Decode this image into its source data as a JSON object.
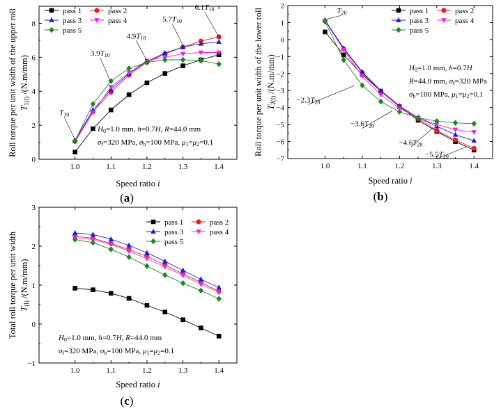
{
  "colors": {
    "pass 1": "#000000",
    "pass 2": "#e8211d",
    "pass 3": "#1c1cdb",
    "pass 4": "#e22ce2",
    "pass 5": "#1d8a1d"
  },
  "markers": {
    "pass 1": "square",
    "pass 2": "circle",
    "pass 3": "triangle-up",
    "pass 4": "triangle-down",
    "pass 5": "diamond"
  },
  "chart_data": [
    {
      "id": "a",
      "type": "line",
      "panel_label": [
        "(",
        "a",
        ")"
      ],
      "xlabel": [
        "Speed ratio ",
        "i"
      ],
      "ylabel_lines": [
        [
          [
            "Roll torque per unit width of the upper roll",
            "n"
          ]
        ],
        [
          [
            "T",
            "i"
          ],
          [
            "1(l)",
            "sub"
          ],
          [
            " /(N.m/mm)",
            "n"
          ]
        ]
      ],
      "xlim": [
        0.9,
        1.45
      ],
      "ylim": [
        0,
        9
      ],
      "xticks": [
        1.0,
        1.1,
        1.2,
        1.3,
        1.4
      ],
      "xtick_labels": [
        "1.0",
        "1.1",
        "1.2",
        "1.3",
        "1.4"
      ],
      "yticks": [
        0,
        2,
        4,
        6,
        8
      ],
      "ytick_labels": [
        "0",
        "2",
        "4",
        "6",
        "8"
      ],
      "grid": false,
      "legend_position": "top-left",
      "legend_columns": 2,
      "x": [
        1.0,
        1.05,
        1.1,
        1.15,
        1.2,
        1.25,
        1.3,
        1.35,
        1.4
      ],
      "series": [
        {
          "name": "pass 1",
          "values": [
            0.42,
            1.8,
            2.9,
            3.8,
            4.5,
            5.05,
            5.5,
            5.85,
            6.15
          ]
        },
        {
          "name": "pass 2",
          "values": [
            1.05,
            2.8,
            3.95,
            4.95,
            5.7,
            6.2,
            6.6,
            6.95,
            7.2
          ]
        },
        {
          "name": "pass 3",
          "values": [
            1.12,
            2.9,
            4.1,
            5.05,
            5.75,
            6.25,
            6.6,
            6.8,
            6.9
          ]
        },
        {
          "name": "pass 4",
          "values": [
            1.02,
            2.75,
            4.25,
            5.1,
            5.8,
            6.0,
            6.2,
            6.28,
            6.28
          ]
        },
        {
          "name": "pass 5",
          "values": [
            1.08,
            3.25,
            4.6,
            5.35,
            5.7,
            5.85,
            5.85,
            5.8,
            5.6
          ]
        }
      ],
      "annotations": [
        {
          "parts": [
            [
              "T",
              "i"
            ],
            [
              "10",
              "sub"
            ]
          ],
          "x": 0.97,
          "y": 2.6,
          "target": [
            1.0,
            1.15
          ]
        },
        {
          "parts": [
            [
              "3.9",
              "n"
            ],
            [
              "T",
              "i"
            ],
            [
              "10",
              "sub"
            ]
          ],
          "x": 1.07,
          "y": 6.1,
          "target": [
            1.1,
            4.5
          ]
        },
        {
          "parts": [
            [
              "4.9",
              "n"
            ],
            [
              "T",
              "i"
            ],
            [
              "10",
              "sub"
            ]
          ],
          "x": 1.17,
          "y": 7.1,
          "target": [
            1.2,
            5.8
          ]
        },
        {
          "parts": [
            [
              "5.7",
              "n"
            ],
            [
              "T",
              "i"
            ],
            [
              "10",
              "sub"
            ]
          ],
          "x": 1.27,
          "y": 8.1,
          "target": [
            1.3,
            6.7
          ]
        },
        {
          "parts": [
            [
              "6.1",
              "n"
            ],
            [
              "T",
              "i"
            ],
            [
              "10",
              "sub"
            ]
          ],
          "x": 1.36,
          "y": 8.8,
          "target": [
            1.4,
            7.2
          ]
        }
      ],
      "note_lines": [
        [
          [
            "H",
            "i"
          ],
          [
            "0",
            "sub"
          ],
          [
            "=1.0 mm, ",
            "n"
          ],
          [
            "h",
            "i"
          ],
          [
            "=0.7",
            "n"
          ],
          [
            "H",
            "i"
          ],
          [
            ", ",
            "n"
          ],
          [
            "R",
            "i"
          ],
          [
            "=44.0 mm",
            "n"
          ]
        ],
        [
          [
            "σ",
            "i"
          ],
          [
            "f",
            "sub"
          ],
          [
            "=320 MPa, ",
            "n"
          ],
          [
            "σ",
            "i"
          ],
          [
            "b",
            "sub"
          ],
          [
            "=100 MPa, ",
            "n"
          ],
          [
            "μ",
            "i"
          ],
          [
            "1",
            "sub"
          ],
          [
            "=",
            "n"
          ],
          [
            "μ",
            "i"
          ],
          [
            "2",
            "sub"
          ],
          [
            "=0.1",
            "n"
          ]
        ]
      ]
    },
    {
      "id": "b",
      "type": "line",
      "panel_label": [
        "(",
        "b",
        ")"
      ],
      "xlabel": [
        "Speed ratio ",
        "i"
      ],
      "ylabel_lines": [
        [
          [
            "Roll torque per unit width of the lower roll",
            "n"
          ]
        ],
        [
          [
            "T",
            "i"
          ],
          [
            "2(l)",
            "sub"
          ],
          [
            " /(N.m/mm)",
            "n"
          ]
        ]
      ],
      "xlim": [
        0.9,
        1.45
      ],
      "ylim": [
        -7,
        2
      ],
      "xticks": [
        1.0,
        1.1,
        1.2,
        1.3,
        1.4
      ],
      "xtick_labels": [
        "1.0",
        "1.1",
        "1.2",
        "1.3",
        "1.4"
      ],
      "yticks": [
        -7,
        -6,
        -5,
        -4,
        -3,
        -2,
        -1,
        0,
        1,
        2
      ],
      "ytick_labels": [
        "−7",
        "−6",
        "−5",
        "−4",
        "−3",
        "−2",
        "−1",
        "0",
        "1",
        "2"
      ],
      "grid": false,
      "legend_position": "top-right",
      "legend_columns": 2,
      "x": [
        1.0,
        1.05,
        1.1,
        1.15,
        1.2,
        1.25,
        1.3,
        1.35,
        1.4
      ],
      "series": [
        {
          "name": "pass 1",
          "values": [
            0.45,
            -0.9,
            -2.05,
            -3.05,
            -3.95,
            -4.75,
            -5.4,
            -6.0,
            -6.5
          ]
        },
        {
          "name": "pass 2",
          "values": [
            1.1,
            -0.55,
            -1.95,
            -3.05,
            -3.95,
            -4.65,
            -5.35,
            -5.9,
            -6.4
          ]
        },
        {
          "name": "pass 3",
          "values": [
            1.15,
            -0.5,
            -1.9,
            -3.0,
            -3.9,
            -4.6,
            -5.1,
            -5.6,
            -5.95
          ]
        },
        {
          "name": "pass 4",
          "values": [
            1.1,
            -0.6,
            -2.15,
            -3.25,
            -4.05,
            -4.6,
            -5.0,
            -5.3,
            -5.45
          ]
        },
        {
          "name": "pass 5",
          "values": [
            1.05,
            -1.2,
            -2.7,
            -3.65,
            -4.25,
            -4.6,
            -4.8,
            -4.9,
            -4.95
          ]
        }
      ],
      "annotations": [
        {
          "parts": [
            [
              "T",
              "i"
            ],
            [
              "20",
              "sub"
            ]
          ],
          "x": 1.045,
          "y": 1.55,
          "target": [
            1.005,
            1.2
          ]
        },
        {
          "parts": [
            [
              "−2.3",
              "n"
            ],
            [
              "T",
              "i"
            ],
            [
              "20",
              "sub"
            ]
          ],
          "x": 0.955,
          "y": -3.7,
          "target": [
            1.08,
            -2.7
          ]
        },
        {
          "parts": [
            [
              "−3.6",
              "n"
            ],
            [
              "T",
              "i"
            ],
            [
              "20",
              "sub"
            ]
          ],
          "x": 1.1,
          "y": -5.1,
          "target": [
            1.18,
            -4.2
          ]
        },
        {
          "parts": [
            [
              "−4.6",
              "n"
            ],
            [
              "T",
              "i"
            ],
            [
              "20",
              "sub"
            ]
          ],
          "x": 1.23,
          "y": -6.2,
          "target": [
            1.29,
            -5.2
          ]
        },
        {
          "parts": [
            [
              "−5.5",
              "n"
            ],
            [
              "T",
              "i"
            ],
            [
              "20",
              "sub"
            ]
          ],
          "x": 1.3,
          "y": -6.9,
          "target": [
            1.38,
            -6.3
          ]
        }
      ],
      "note_lines": [
        [
          [
            "H",
            "i"
          ],
          [
            "0",
            "sub"
          ],
          [
            "=1.0 mm, ",
            "n"
          ],
          [
            "h",
            "i"
          ],
          [
            "=0.7",
            "n"
          ],
          [
            "H",
            "i"
          ]
        ],
        [
          [
            "R",
            "i"
          ],
          [
            "=44.0 mm, ",
            "n"
          ],
          [
            "σ",
            "i"
          ],
          [
            "f",
            "sub"
          ],
          [
            "=320 MPa",
            "n"
          ]
        ],
        [
          [
            "σ",
            "i"
          ],
          [
            "b",
            "sub"
          ],
          [
            "=100 MPa, ",
            "n"
          ],
          [
            "μ",
            "i"
          ],
          [
            "1",
            "sub"
          ],
          [
            "=",
            "n"
          ],
          [
            "μ",
            "i"
          ],
          [
            "2",
            "sub"
          ],
          [
            "=0.1",
            "n"
          ]
        ]
      ]
    },
    {
      "id": "c",
      "type": "line",
      "panel_label": [
        "(",
        "c",
        ")"
      ],
      "xlabel": [
        "Speed ratio ",
        "i"
      ],
      "ylabel_lines": [
        [
          [
            "Total roll torque per unit width",
            "n"
          ]
        ],
        [
          [
            "T",
            "i"
          ],
          [
            "(l)",
            "sub"
          ],
          [
            " /(N.m/mm)",
            "n"
          ]
        ]
      ],
      "xlim": [
        0.9,
        1.45
      ],
      "ylim": [
        -1,
        3
      ],
      "xticks": [
        1.0,
        1.1,
        1.2,
        1.3,
        1.4
      ],
      "xtick_labels": [
        "1.0",
        "1.1",
        "1.2",
        "1.3",
        "1.4"
      ],
      "yticks": [
        -1,
        0,
        1,
        2,
        3
      ],
      "ytick_labels": [
        "−1",
        "0",
        "1",
        "2",
        "3"
      ],
      "grid": false,
      "legend_position": "top-right",
      "legend_columns": 2,
      "x": [
        1.0,
        1.05,
        1.1,
        1.15,
        1.2,
        1.25,
        1.3,
        1.35,
        1.4
      ],
      "series": [
        {
          "name": "pass 1",
          "values": [
            0.92,
            0.88,
            0.79,
            0.66,
            0.48,
            0.31,
            0.11,
            -0.1,
            -0.31
          ]
        },
        {
          "name": "pass 2",
          "values": [
            2.26,
            2.2,
            2.07,
            1.91,
            1.74,
            1.52,
            1.29,
            1.07,
            0.84
          ]
        },
        {
          "name": "pass 3",
          "values": [
            2.34,
            2.3,
            2.18,
            2.02,
            1.83,
            1.61,
            1.38,
            1.15,
            0.94
          ]
        },
        {
          "name": "pass 4",
          "values": [
            2.22,
            2.17,
            2.05,
            1.87,
            1.68,
            1.47,
            1.25,
            1.02,
            0.81
          ]
        },
        {
          "name": "pass 5",
          "values": [
            2.17,
            2.09,
            1.92,
            1.72,
            1.49,
            1.26,
            1.05,
            0.86,
            0.65
          ]
        }
      ],
      "annotations": [],
      "note_lines": [
        [
          [
            "H",
            "i"
          ],
          [
            "0",
            "sub"
          ],
          [
            "=1.0 mm, ",
            "n"
          ],
          [
            "h",
            "i"
          ],
          [
            "=0.7",
            "n"
          ],
          [
            "H",
            "i"
          ],
          [
            ", ",
            "n"
          ],
          [
            "R",
            "i"
          ],
          [
            "=44.0 mm",
            "n"
          ]
        ],
        [
          [
            "σ",
            "i"
          ],
          [
            "f",
            "sub"
          ],
          [
            "=320 MPa, ",
            "n"
          ],
          [
            "σ",
            "i"
          ],
          [
            "b",
            "sub"
          ],
          [
            "=100 MPa, ",
            "n"
          ],
          [
            "μ",
            "i"
          ],
          [
            "1",
            "sub"
          ],
          [
            "=",
            "n"
          ],
          [
            "μ",
            "i"
          ],
          [
            "2",
            "sub"
          ],
          [
            "=0.1",
            "n"
          ]
        ]
      ]
    }
  ]
}
